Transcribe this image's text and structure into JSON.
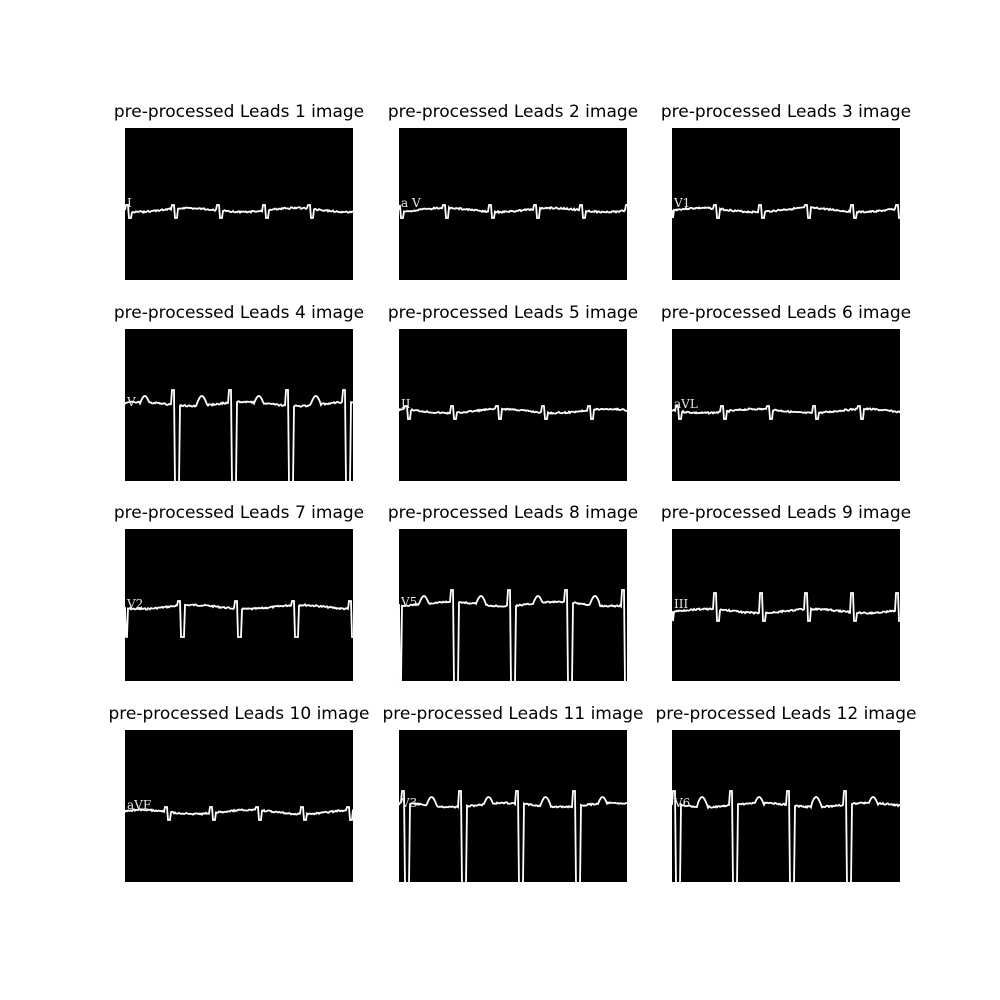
{
  "figure": {
    "background": "#ffffff",
    "image_background": "#000000",
    "trace_color": "#ffffff",
    "panels": [
      {
        "title": "pre-processed Leads 1 image",
        "lead_label": "I",
        "style": "flat"
      },
      {
        "title": "pre-processed Leads 2 image",
        "lead_label": "a V",
        "style": "flat"
      },
      {
        "title": "pre-processed Leads 3 image",
        "lead_label": "V1",
        "style": "flat"
      },
      {
        "title": "pre-processed Leads 4 image",
        "lead_label": "V",
        "style": "deep"
      },
      {
        "title": "pre-processed Leads 5 image",
        "lead_label": "II",
        "style": "flat"
      },
      {
        "title": "pre-processed Leads 6 image",
        "lead_label": "aVL",
        "style": "flat"
      },
      {
        "title": "pre-processed Leads 7 image",
        "lead_label": "V2",
        "style": "medium"
      },
      {
        "title": "pre-processed Leads 8 image",
        "lead_label": "V5",
        "style": "deep"
      },
      {
        "title": "pre-processed Leads 9 image",
        "lead_label": "III",
        "style": "spiky"
      },
      {
        "title": "pre-processed Leads 10 image",
        "lead_label": "aVF",
        "style": "flat"
      },
      {
        "title": "pre-processed Leads 11 image",
        "lead_label": "V3",
        "style": "deep"
      },
      {
        "title": "pre-processed Leads 12 image",
        "lead_label": "V6",
        "style": "deep"
      }
    ]
  }
}
